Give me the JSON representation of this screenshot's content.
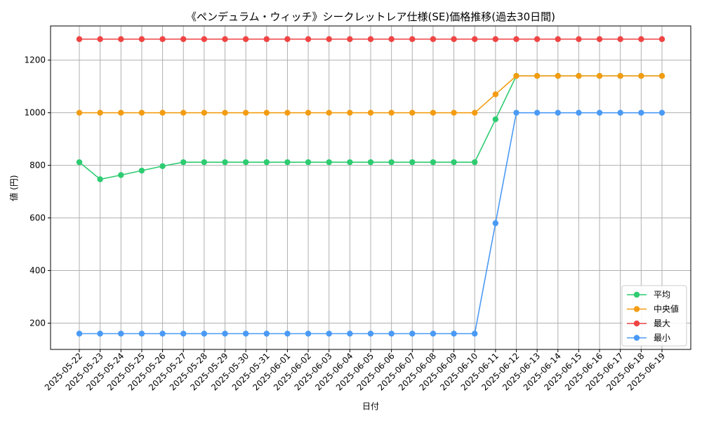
{
  "chart_data": {
    "type": "line",
    "title": "《ペンデュラム・ウィッチ》シークレットレア仕様(SE)価格推移(過去30日間)",
    "xlabel": "日付",
    "ylabel": "値 (円)",
    "ylim": [
      100,
      1330
    ],
    "yticks": [
      200,
      400,
      600,
      800,
      1000,
      1200
    ],
    "grid": true,
    "legend_position": "bottom-right",
    "categories": [
      "2025-05-22",
      "2025-05-23",
      "2025-05-24",
      "2025-05-25",
      "2025-05-26",
      "2025-05-27",
      "2025-05-28",
      "2025-05-29",
      "2025-05-30",
      "2025-05-31",
      "2025-06-01",
      "2025-06-02",
      "2025-06-03",
      "2025-06-04",
      "2025-06-05",
      "2025-06-06",
      "2025-06-07",
      "2025-06-08",
      "2025-06-09",
      "2025-06-10",
      "2025-06-11",
      "2025-06-12",
      "2025-06-13",
      "2025-06-14",
      "2025-06-15",
      "2025-06-16",
      "2025-06-17",
      "2025-06-18",
      "2025-06-19"
    ],
    "series": [
      {
        "name": "平均",
        "color": "#2ecc71",
        "values": [
          812,
          747,
          763,
          780,
          797,
          812,
          812,
          812,
          812,
          812,
          812,
          812,
          812,
          812,
          812,
          812,
          812,
          812,
          812,
          812,
          975,
          1140,
          1140,
          1140,
          1140,
          1140,
          1140,
          1140,
          1140
        ]
      },
      {
        "name": "中央値",
        "color": "#f39c12",
        "values": [
          1000,
          1000,
          1000,
          1000,
          1000,
          1000,
          1000,
          1000,
          1000,
          1000,
          1000,
          1000,
          1000,
          1000,
          1000,
          1000,
          1000,
          1000,
          1000,
          1000,
          1070,
          1140,
          1140,
          1140,
          1140,
          1140,
          1140,
          1140,
          1140
        ]
      },
      {
        "name": "最大",
        "color": "#ef4444",
        "values": [
          1280,
          1280,
          1280,
          1280,
          1280,
          1280,
          1280,
          1280,
          1280,
          1280,
          1280,
          1280,
          1280,
          1280,
          1280,
          1280,
          1280,
          1280,
          1280,
          1280,
          1280,
          1280,
          1280,
          1280,
          1280,
          1280,
          1280,
          1280,
          1280
        ]
      },
      {
        "name": "最小",
        "color": "#4a9af5",
        "values": [
          160,
          160,
          160,
          160,
          160,
          160,
          160,
          160,
          160,
          160,
          160,
          160,
          160,
          160,
          160,
          160,
          160,
          160,
          160,
          160,
          580,
          1000,
          1000,
          1000,
          1000,
          1000,
          1000,
          1000,
          1000
        ]
      }
    ]
  }
}
